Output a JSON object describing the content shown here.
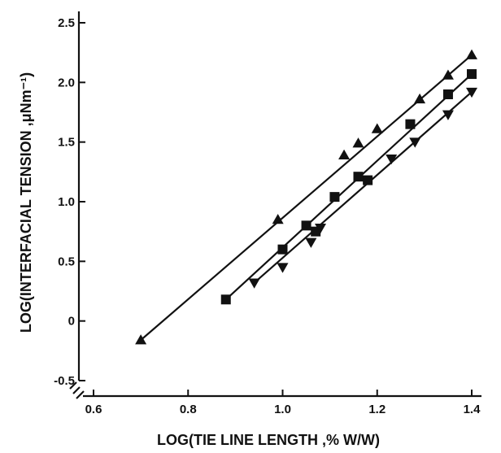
{
  "chart_data": {
    "type": "scatter",
    "title": "",
    "xlabel": "LOG(TIE LINE LENGTH ,% W/W)",
    "ylabel": "LOG(INTERFACIAL TENSION ,μNm⁻¹)",
    "xlim": [
      0.6,
      1.4
    ],
    "ylim": [
      -0.5,
      2.5
    ],
    "x_ticks": [
      "0.6",
      "0.8",
      "1.0",
      "1.2",
      "1.4"
    ],
    "y_ticks": [
      "-0.5",
      "0",
      "0.5",
      "1.0",
      "1.5",
      "2.0",
      "2.5"
    ],
    "axis_break": "x-axis near 0.6",
    "grid": false,
    "series": [
      {
        "marker": "triangle-up",
        "points": [
          [
            0.7,
            -0.16
          ],
          [
            0.99,
            0.85
          ],
          [
            1.13,
            1.39
          ],
          [
            1.16,
            1.49
          ],
          [
            1.2,
            1.61
          ],
          [
            1.29,
            1.86
          ],
          [
            1.35,
            2.06
          ],
          [
            1.4,
            2.23
          ]
        ],
        "fit": [
          [
            0.7,
            -0.16
          ],
          [
            1.4,
            2.23
          ]
        ]
      },
      {
        "marker": "square",
        "points": [
          [
            0.88,
            0.18
          ],
          [
            1.0,
            0.6
          ],
          [
            1.05,
            0.8
          ],
          [
            1.07,
            0.75
          ],
          [
            1.11,
            1.04
          ],
          [
            1.16,
            1.21
          ],
          [
            1.18,
            1.18
          ],
          [
            1.27,
            1.65
          ],
          [
            1.35,
            1.9
          ],
          [
            1.4,
            2.07
          ]
        ],
        "fit": [
          [
            0.88,
            0.18
          ],
          [
            1.4,
            2.07
          ]
        ]
      },
      {
        "marker": "triangle-down",
        "points": [
          [
            0.94,
            0.32
          ],
          [
            1.0,
            0.45
          ],
          [
            1.06,
            0.66
          ],
          [
            1.08,
            0.78
          ],
          [
            1.23,
            1.36
          ],
          [
            1.28,
            1.5
          ],
          [
            1.35,
            1.73
          ],
          [
            1.4,
            1.92
          ]
        ],
        "fit": [
          [
            0.94,
            0.32
          ],
          [
            1.4,
            1.92
          ]
        ]
      }
    ]
  }
}
